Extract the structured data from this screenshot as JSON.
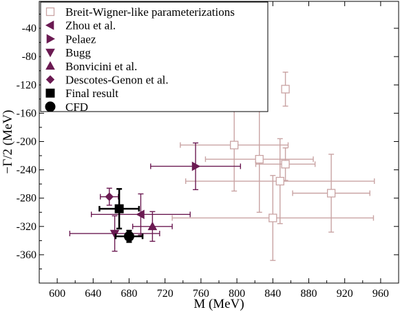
{
  "chart_data": {
    "type": "scatter",
    "xlabel": "M (MeV)",
    "ylabel": "−Γ/2 (MeV)",
    "xlim": [
      580,
      980
    ],
    "ylim": [
      -400,
      -2
    ],
    "xticks": [
      600,
      640,
      680,
      720,
      760,
      800,
      840,
      880,
      920,
      960
    ],
    "yticks": [
      -40,
      -80,
      -120,
      -160,
      -200,
      -240,
      -280,
      -320,
      -360
    ],
    "grid": false,
    "legend_position": "top-left",
    "error_bars": true,
    "series": [
      {
        "name": "Breit-Wigner-like parameterizations",
        "marker": "open-square",
        "color": "#c9a3a3",
        "points": [
          {
            "x": 854,
            "y": -126,
            "xerr": 3,
            "yerr": 24
          },
          {
            "x": 797,
            "y": -205,
            "xerr": 60,
            "yerr": 65
          },
          {
            "x": 825,
            "y": -225,
            "xerr": 60,
            "yerr": 75
          },
          {
            "x": 854,
            "y": -232,
            "xerr": 33,
            "yerr": 23
          },
          {
            "x": 848,
            "y": -256,
            "xerr": 105,
            "yerr": 60
          },
          {
            "x": 905,
            "y": -273,
            "xerr": 43,
            "yerr": 55
          },
          {
            "x": 840,
            "y": -308,
            "xerr": 112,
            "yerr": 60
          }
        ]
      },
      {
        "name": "Zhou et al.",
        "marker": "triangle-left",
        "color": "#6b1a52",
        "points": [
          {
            "x": 693,
            "y": -303,
            "xerr": 55,
            "yerr": 29
          }
        ]
      },
      {
        "name": "Pelaez",
        "marker": "triangle-right",
        "color": "#6b1a52",
        "points": [
          {
            "x": 754,
            "y": -235,
            "xerr": 50,
            "yerr": 33
          }
        ]
      },
      {
        "name": "Bugg",
        "marker": "triangle-down",
        "color": "#6b1a52",
        "points": [
          {
            "x": 664,
            "y": -330,
            "xerr": 50,
            "yerr": 25
          }
        ]
      },
      {
        "name": "Bonvicini et al.",
        "marker": "triangle-up",
        "color": "#6b1a52",
        "points": [
          {
            "x": 706,
            "y": -320,
            "xerr": 22,
            "yerr": 21
          }
        ]
      },
      {
        "name": "Descotes-Genon et al.",
        "marker": "diamond",
        "color": "#6b1a52",
        "points": [
          {
            "x": 658,
            "y": -278,
            "xerr": 10,
            "yerr": 12
          }
        ]
      },
      {
        "name": "Final result",
        "marker": "filled-square",
        "color": "#000000",
        "points": [
          {
            "x": 669,
            "y": -295,
            "xerr": 22,
            "yerr": 28
          }
        ]
      },
      {
        "name": "CFD",
        "marker": "filled-circle",
        "color": "#000000",
        "points": [
          {
            "x": 680,
            "y": -334,
            "xerr": 15,
            "yerr": 8
          }
        ]
      }
    ]
  }
}
